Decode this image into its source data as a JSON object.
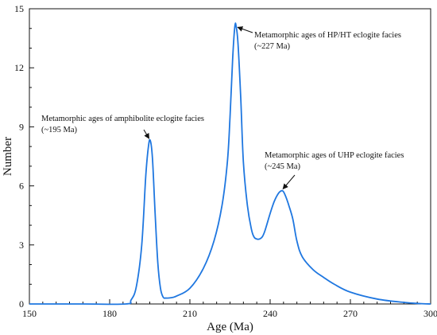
{
  "chart_data": {
    "type": "line",
    "title": "",
    "xlabel": "Age (Ma)",
    "ylabel": "Number",
    "xlim": [
      150,
      300
    ],
    "ylim": [
      0,
      15
    ],
    "x_ticks": [
      150,
      180,
      210,
      240,
      270,
      300
    ],
    "x_tick_labels": [
      "150",
      "180",
      "210",
      "240",
      "270",
      "300"
    ],
    "y_ticks": [
      0,
      3,
      6,
      9,
      12,
      15
    ],
    "y_tick_labels": [
      "0",
      "3",
      "6",
      "9",
      "12",
      "15"
    ],
    "grid": false,
    "legend": "none",
    "series": [
      {
        "color": "#1f77e0",
        "x": [
          150,
          170,
          186,
          188,
          190,
          192,
          193.5,
          194.5,
          195.2,
          196,
          197,
          198,
          199,
          200,
          201,
          203,
          205,
          210,
          215,
          219,
          222,
          224,
          225,
          226,
          226.8,
          227.3,
          228,
          229,
          230,
          231.5,
          233,
          234,
          235,
          236,
          237,
          238,
          240,
          241.5,
          243,
          244.2,
          245,
          246,
          247,
          248.5,
          250,
          252,
          256,
          260,
          264,
          270,
          280,
          290,
          296,
          300
        ],
        "y": [
          0,
          0,
          0,
          0.2,
          0.9,
          3.0,
          6.5,
          8.0,
          8.3,
          7.4,
          4.6,
          2.1,
          0.8,
          0.35,
          0.3,
          0.32,
          0.4,
          0.8,
          1.8,
          3.2,
          5.0,
          7.2,
          9.5,
          12.5,
          14.1,
          14.1,
          13.2,
          10.5,
          7.2,
          5.0,
          3.8,
          3.4,
          3.3,
          3.3,
          3.4,
          3.7,
          4.6,
          5.2,
          5.6,
          5.75,
          5.7,
          5.4,
          5.0,
          4.3,
          3.2,
          2.4,
          1.75,
          1.35,
          1.0,
          0.6,
          0.25,
          0.08,
          0.02,
          0.0
        ]
      }
    ],
    "annotations": [
      {
        "lines": [
          "Metamorphic ages of amphibolite eclogite facies",
          "(~195 Ma)"
        ],
        "point": [
          195.2,
          8.3
        ]
      },
      {
        "lines": [
          "Metamorphic ages of HP/HT eclogite facies",
          "(~227 Ma)"
        ],
        "point": [
          227,
          14.1
        ]
      },
      {
        "lines": [
          "Metamorphic ages of UHP eclogite facies",
          "(~245 Ma)"
        ],
        "point": [
          244.2,
          5.75
        ]
      }
    ]
  }
}
